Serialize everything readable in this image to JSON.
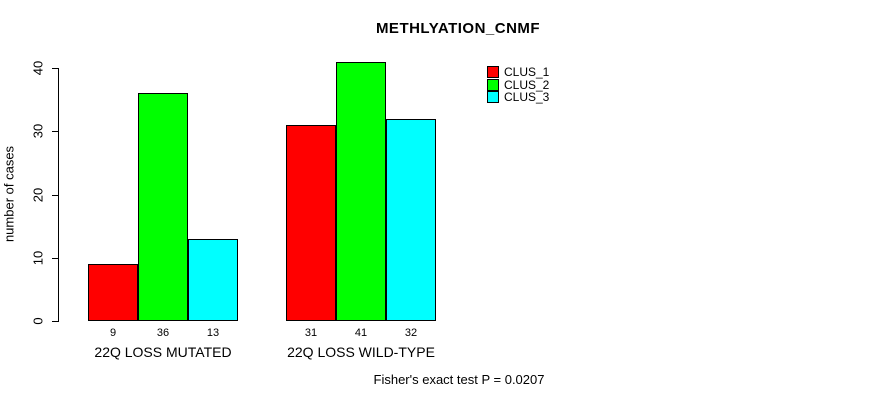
{
  "chart_data": {
    "type": "bar",
    "title": "METHLYATION_CNMF",
    "ylabel": "number of cases",
    "xlabel": "",
    "categories": [
      "22Q LOSS MUTATED",
      "22Q LOSS WILD-TYPE"
    ],
    "series": [
      {
        "name": "CLUS_1",
        "color": "#ff0000",
        "values": [
          9,
          31
        ]
      },
      {
        "name": "CLUS_2",
        "color": "#00ff00",
        "values": [
          36,
          41
        ]
      },
      {
        "name": "CLUS_3",
        "color": "#00ffff",
        "values": [
          13,
          32
        ]
      }
    ],
    "bar_value_labels": [
      [
        "9",
        "36",
        "13"
      ],
      [
        "31",
        "41",
        "32"
      ]
    ],
    "ylim": [
      0,
      40
    ],
    "yticks": [
      "0",
      "10",
      "20",
      "30",
      "40"
    ],
    "grid": false,
    "legend_position": "top-right",
    "legend_entries": [
      {
        "label": "CLUS_1",
        "color": "#ff0000"
      },
      {
        "label": "CLUS_2",
        "color": "#00ff00"
      },
      {
        "label": "CLUS_3",
        "color": "#00ffff"
      }
    ],
    "annotation": "Fisher's exact test P = 0.0207"
  },
  "colors": {
    "axis": "#000000",
    "background": "#ffffff",
    "clus_1": "#ff0000",
    "clus_2": "#00ff00",
    "clus_3": "#00ffff"
  }
}
